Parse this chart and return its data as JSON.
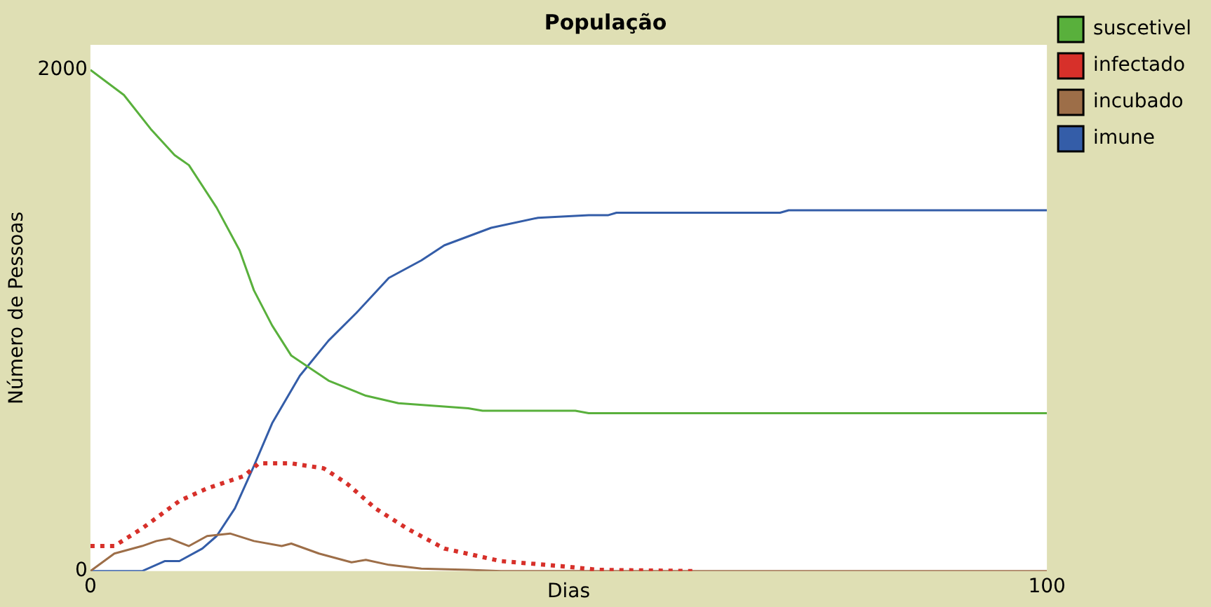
{
  "chart_data": {
    "type": "line",
    "title": "População",
    "xlabel": "Dias",
    "ylabel": "Número de Pessoas",
    "xlim": [
      0,
      100
    ],
    "ylim": [
      0,
      2100
    ],
    "xticks": [
      0,
      100
    ],
    "yticks": [
      0,
      2000
    ],
    "grid": false,
    "legend": "right",
    "marker": "none",
    "series": [
      {
        "name": "suscetivel",
        "color": "#59b03c",
        "line_style": "solid",
        "x": [
          0,
          3.5,
          6.4,
          8.8,
          10.3,
          13.2,
          15.6,
          17.1,
          19.0,
          21.0,
          24.9,
          28.8,
          32.2,
          39.5,
          41.0,
          50.7,
          52.1,
          100
        ],
        "values": [
          2000,
          1900,
          1760,
          1660,
          1620,
          1450,
          1280,
          1120,
          980,
          860,
          760,
          700,
          670,
          650,
          640,
          640,
          630,
          630
        ]
      },
      {
        "name": "infectado",
        "color": "#d7302a",
        "line_style": "dotted",
        "x": [
          0,
          2.5,
          5.4,
          9.3,
          12.2,
          16.1,
          17.6,
          21.0,
          24.4,
          26.8,
          29.8,
          33.1,
          37.0,
          42.9,
          49.2,
          53.1,
          63.3
        ],
        "values": [
          100,
          100,
          170,
          280,
          330,
          380,
          430,
          430,
          410,
          350,
          250,
          170,
          90,
          40,
          20,
          5,
          0
        ]
      },
      {
        "name": "incubado",
        "color": "#9d6e48",
        "line_style": "solid",
        "x": [
          0,
          2.5,
          5.4,
          6.9,
          8.3,
          10.3,
          12.2,
          14.6,
          17.1,
          20.0,
          21.0,
          23.9,
          27.3,
          28.8,
          31.2,
          34.6,
          39.5,
          42.9,
          100
        ],
        "values": [
          0,
          70,
          100,
          120,
          130,
          100,
          140,
          150,
          120,
          100,
          110,
          70,
          35,
          45,
          25,
          10,
          5,
          0,
          0
        ]
      },
      {
        "name": "imune",
        "color": "#345da8",
        "line_style": "solid",
        "x": [
          0,
          5.4,
          7.8,
          9.3,
          11.7,
          13.2,
          15.1,
          17.1,
          19.0,
          21.9,
          24.9,
          27.8,
          31.2,
          34.6,
          37.0,
          41.9,
          46.8,
          52.1,
          54.1,
          55.0,
          72.1,
          73.0,
          100
        ],
        "values": [
          0,
          0,
          40,
          40,
          90,
          140,
          250,
          420,
          590,
          780,
          920,
          1030,
          1170,
          1240,
          1300,
          1370,
          1410,
          1420,
          1420,
          1430,
          1430,
          1440,
          1440
        ]
      }
    ]
  }
}
